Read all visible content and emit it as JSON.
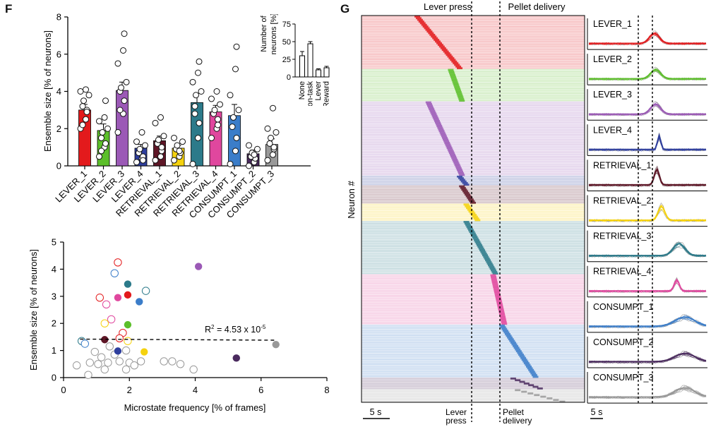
{
  "panel_letters": {
    "f": "F",
    "g": "G"
  },
  "colors": {
    "LEVER_1": "#e31a1c",
    "LEVER_2": "#5cbf2a",
    "LEVER_3": "#9b59b6",
    "LEVER_4": "#2f3f9e",
    "RETRIEVAL_1": "#5e1626",
    "RETRIEVAL_2": "#f5d20e",
    "RETRIEVAL_3": "#2c7a8a",
    "RETRIEVAL_4": "#e0479e",
    "CONSUMPT_1": "#3b7dc9",
    "CONSUMPT_2": "#4a2a5e",
    "CONSUMPT_3": "#999999"
  },
  "chart_data": [
    {
      "id": "ensemble_bar",
      "type": "bar",
      "categories": [
        "LEVER_1",
        "LEVER_2",
        "LEVER_3",
        "LEVER_4",
        "RETRIEVAL_1",
        "RETRIEVAL_2",
        "RETRIEVAL_3",
        "RETRIEVAL_4",
        "CONSUMPT_1",
        "CONSUMPT_2",
        "CONSUMPT_3"
      ],
      "values": [
        3.0,
        1.9,
        4.05,
        0.95,
        1.35,
        0.95,
        3.4,
        2.9,
        2.7,
        0.65,
        1.15
      ],
      "errors": [
        0.3,
        0.35,
        0.45,
        0.2,
        0.25,
        0.15,
        0.5,
        0.35,
        0.6,
        0.2,
        0.3
      ],
      "points": [
        [
          2.0,
          2.5,
          3.0,
          3.2,
          3.5,
          3.8,
          4.0,
          4.1,
          2.9,
          2.2
        ],
        [
          0.5,
          1.0,
          1.2,
          1.5,
          1.8,
          2.0,
          2.4,
          2.6,
          3.5,
          0.8
        ],
        [
          1.8,
          2.8,
          3.5,
          4.0,
          4.2,
          4.5,
          5.5,
          6.2,
          7.1,
          3.0
        ],
        [
          0.2,
          0.4,
          0.5,
          0.7,
          0.9,
          1.1,
          1.3,
          1.8,
          0.3
        ],
        [
          0.3,
          0.5,
          0.8,
          1.2,
          1.4,
          1.6,
          2.3,
          2.6,
          1.0
        ],
        [
          0.3,
          0.5,
          0.7,
          0.9,
          1.1,
          1.3,
          1.5,
          0.8
        ],
        [
          0.1,
          1.5,
          2.3,
          3.2,
          3.8,
          4.0,
          4.5,
          5.0,
          5.6,
          2.8
        ],
        [
          1.5,
          2.0,
          2.5,
          2.8,
          3.0,
          3.3,
          3.6,
          4.0,
          2.2
        ],
        [
          0.1,
          0.8,
          1.5,
          2.1,
          2.6,
          3.0,
          3.8,
          5.2,
          6.4
        ],
        [
          0.0,
          0.2,
          0.4,
          0.5,
          0.7,
          0.9,
          1.1,
          0.6
        ],
        [
          0.3,
          0.6,
          0.9,
          1.2,
          1.5,
          1.8,
          2.0,
          3.1,
          1.0
        ]
      ],
      "ylabel": "Ensemble size [% of neurons]",
      "ylim": [
        0,
        8
      ],
      "yticks": [
        "0",
        "2",
        "4",
        "6",
        "8"
      ]
    },
    {
      "id": "neuron_type_inset",
      "type": "bar",
      "categories": [
        "None",
        "Non-task",
        "Lever",
        "Reward"
      ],
      "values": [
        30,
        47,
        10,
        13
      ],
      "errors": [
        6,
        3,
        1.5,
        2
      ],
      "ylabel_lines": [
        "Number of",
        "neurons [%]"
      ],
      "ylim": [
        0,
        75
      ],
      "yticks": [
        "0",
        "25",
        "50",
        "75"
      ]
    },
    {
      "id": "frequency_scatter",
      "type": "scatter",
      "xlabel": "Microstate frequency [% of frames]",
      "ylabel": "Ensemble size [% of neurons]",
      "xlim": [
        0,
        8
      ],
      "ylim": [
        0,
        5
      ],
      "xticks": [
        "0",
        "2",
        "4",
        "6",
        "8"
      ],
      "yticks": [
        "0",
        "1",
        "2",
        "3",
        "4",
        "5"
      ],
      "annotation": {
        "prefix": "R",
        "sup1": "2",
        "mid": " = 4.53 x 10",
        "sup2": "-5"
      },
      "regression_y": [
        1.42,
        1.38
      ],
      "filled_points": [
        {
          "x": 1.95,
          "y": 3.05,
          "c": "#e31a1c"
        },
        {
          "x": 1.65,
          "y": 2.95,
          "c": "#e0479e"
        },
        {
          "x": 1.95,
          "y": 3.45,
          "c": "#2c7a8a"
        },
        {
          "x": 2.3,
          "y": 2.8,
          "c": "#3b7dc9"
        },
        {
          "x": 1.95,
          "y": 1.95,
          "c": "#5cbf2a"
        },
        {
          "x": 4.1,
          "y": 4.1,
          "c": "#9b59b6"
        },
        {
          "x": 1.25,
          "y": 1.4,
          "c": "#5e1626"
        },
        {
          "x": 2.45,
          "y": 0.95,
          "c": "#f5d20e"
        },
        {
          "x": 1.65,
          "y": 0.98,
          "c": "#2f3f9e"
        },
        {
          "x": 5.25,
          "y": 0.72,
          "c": "#4a2a5e"
        },
        {
          "x": 6.45,
          "y": 1.22,
          "c": "#999999"
        }
      ],
      "open_points": [
        {
          "x": 1.65,
          "y": 4.25,
          "c": "#e31a1c"
        },
        {
          "x": 1.55,
          "y": 3.85,
          "c": "#3b7dc9"
        },
        {
          "x": 2.5,
          "y": 3.2,
          "c": "#2c7a8a"
        },
        {
          "x": 1.1,
          "y": 2.95,
          "c": "#e31a1c"
        },
        {
          "x": 1.3,
          "y": 2.7,
          "c": "#e0479e"
        },
        {
          "x": 1.45,
          "y": 2.15,
          "c": "#e0479e"
        },
        {
          "x": 1.25,
          "y": 2.0,
          "c": "#f5d20e"
        },
        {
          "x": 1.8,
          "y": 1.65,
          "c": "#e31a1c"
        },
        {
          "x": 0.55,
          "y": 1.35,
          "c": "#2c7a8a"
        },
        {
          "x": 0.65,
          "y": 1.25,
          "c": "#3b7dc9"
        },
        {
          "x": 1.95,
          "y": 1.35,
          "c": "#f5d20e"
        },
        {
          "x": 1.7,
          "y": 1.45,
          "c": "#e31a1c"
        },
        {
          "x": 1.4,
          "y": 1.15,
          "c": "#999999"
        },
        {
          "x": 1.9,
          "y": 1.0,
          "c": "#999999"
        },
        {
          "x": 0.95,
          "y": 0.95,
          "c": "#999999"
        },
        {
          "x": 1.15,
          "y": 0.75,
          "c": "#999999"
        },
        {
          "x": 1.55,
          "y": 0.85,
          "c": "#999999"
        },
        {
          "x": 0.8,
          "y": 0.55,
          "c": "#999999"
        },
        {
          "x": 1.05,
          "y": 0.5,
          "c": "#999999"
        },
        {
          "x": 1.35,
          "y": 0.55,
          "c": "#999999"
        },
        {
          "x": 1.7,
          "y": 0.6,
          "c": "#999999"
        },
        {
          "x": 2.0,
          "y": 0.55,
          "c": "#999999"
        },
        {
          "x": 2.35,
          "y": 0.6,
          "c": "#999999"
        },
        {
          "x": 2.15,
          "y": 0.45,
          "c": "#999999"
        },
        {
          "x": 1.9,
          "y": 0.3,
          "c": "#999999"
        },
        {
          "x": 1.25,
          "y": 0.3,
          "c": "#999999"
        },
        {
          "x": 0.4,
          "y": 0.45,
          "c": "#999999"
        },
        {
          "x": 3.05,
          "y": 0.6,
          "c": "#999999"
        },
        {
          "x": 3.3,
          "y": 0.6,
          "c": "#999999"
        },
        {
          "x": 3.55,
          "y": 0.5,
          "c": "#999999"
        },
        {
          "x": 3.95,
          "y": 0.3,
          "c": "#999999"
        },
        {
          "x": 0.75,
          "y": 0.1,
          "c": "#999999"
        }
      ]
    },
    {
      "id": "raster_heatmap",
      "type": "heatmap",
      "ylabel": "Neuron #",
      "events": [
        "Lever press",
        "Pellet delivery"
      ],
      "bottom_labels": [
        [
          "Lever",
          "press"
        ],
        [
          "Pellet",
          "delivery"
        ]
      ],
      "scale_label": "5 s",
      "blocks": [
        {
          "name": "LEVER_1",
          "frac": 0.138,
          "c": "#e31a1c",
          "t0": 0.25,
          "t1": 0.44
        },
        {
          "name": "LEVER_2",
          "frac": 0.084,
          "c": "#5cbf2a",
          "t0": 0.4,
          "t1": 0.45
        },
        {
          "name": "LEVER_3",
          "frac": 0.192,
          "c": "#9b59b6",
          "t0": 0.3,
          "t1": 0.45
        },
        {
          "name": "LEVER_4",
          "frac": 0.025,
          "c": "#2f3f9e",
          "t0": 0.44,
          "t1": 0.47
        },
        {
          "name": "RETRIEVAL_1",
          "frac": 0.047,
          "c": "#5e1626",
          "t0": 0.45,
          "t1": 0.5
        },
        {
          "name": "RETRIEVAL_2",
          "frac": 0.045,
          "c": "#f5d20e",
          "t0": 0.47,
          "t1": 0.52
        },
        {
          "name": "RETRIEVAL_3",
          "frac": 0.138,
          "c": "#2c7a8a",
          "t0": 0.47,
          "t1": 0.6
        },
        {
          "name": "RETRIEVAL_4",
          "frac": 0.13,
          "c": "#e0479e",
          "t0": 0.59,
          "t1": 0.64
        },
        {
          "name": "CONSUMPT_1",
          "frac": 0.137,
          "c": "#3b7dc9",
          "t0": 0.63,
          "t1": 0.78
        },
        {
          "name": "CONSUMPT_2",
          "frac": 0.03,
          "c": "#4a2a5e",
          "t0": 0.68,
          "t1": 0.8
        },
        {
          "name": "CONSUMPT_3",
          "frac": 0.034,
          "c": "#999999",
          "t0": 0.7,
          "t1": 0.9
        }
      ]
    },
    {
      "id": "ensemble_traces",
      "type": "line",
      "labels": [
        "LEVER_1",
        "LEVER_2",
        "LEVER_3",
        "LEVER_4",
        "RETRIEVAL_1",
        "RETRIEVAL_2",
        "RETRIEVAL_3",
        "RETRIEVAL_4",
        "CONSUMPT_1",
        "CONSUMPT_2",
        "CONSUMPT_3"
      ],
      "peak_time": [
        0.56,
        0.57,
        0.57,
        0.6,
        0.58,
        0.62,
        0.77,
        0.75,
        0.82,
        0.82,
        0.82
      ],
      "peak_height": [
        0.55,
        0.5,
        0.55,
        0.75,
        0.85,
        0.75,
        0.65,
        0.6,
        0.5,
        0.45,
        0.5
      ],
      "peak_width": [
        0.06,
        0.06,
        0.06,
        0.02,
        0.03,
        0.04,
        0.07,
        0.03,
        0.12,
        0.12,
        0.12
      ],
      "scale_label": "5 s"
    }
  ]
}
